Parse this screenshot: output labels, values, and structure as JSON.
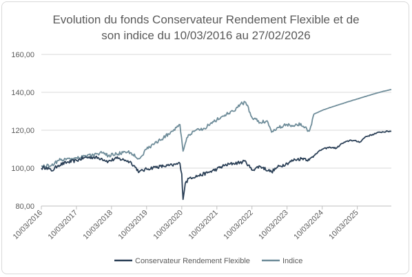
{
  "chart_data": {
    "type": "line",
    "title_lines": [
      "Evolution du fonds Conservateur Rendement Flexible et de",
      "son indice du 10/03/2016 au 27/02/2026"
    ],
    "xlabel": "",
    "ylabel": "",
    "ylim": [
      80,
      160
    ],
    "y_ticks": [
      "80,00",
      "100,00",
      "120,00",
      "140,00",
      "160,00"
    ],
    "y_tick_values": [
      80,
      100,
      120,
      140,
      160
    ],
    "x_ticks": [
      "10/03/2016",
      "10/03/2017",
      "10/03/2018",
      "10/03/2019",
      "10/03/2020",
      "10/03/2021",
      "10/03/2022",
      "10/03/2023",
      "10/03/2024",
      "10/03/2025"
    ],
    "xlim": [
      "2016-03-10",
      "2026-02-27"
    ],
    "grid": "horizontal",
    "legend_position": "bottom",
    "series": [
      {
        "name": "Conservateur Rendement Flexible",
        "color": "#2a3f56",
        "points": [
          [
            "2016-03-10",
            100.0
          ],
          [
            "2016-05-01",
            100.5
          ],
          [
            "2016-06-24",
            98.5
          ],
          [
            "2016-09-01",
            101.5
          ],
          [
            "2016-12-01",
            103.0
          ],
          [
            "2017-03-10",
            104.0
          ],
          [
            "2017-06-01",
            105.5
          ],
          [
            "2017-09-01",
            105.8
          ],
          [
            "2017-12-01",
            105.0
          ],
          [
            "2018-02-05",
            103.5
          ],
          [
            "2018-05-01",
            105.2
          ],
          [
            "2018-08-01",
            104.2
          ],
          [
            "2018-10-01",
            103.0
          ],
          [
            "2018-12-24",
            98.0
          ],
          [
            "2019-03-10",
            99.5
          ],
          [
            "2019-06-01",
            100.5
          ],
          [
            "2019-09-01",
            101.0
          ],
          [
            "2019-12-01",
            101.5
          ],
          [
            "2020-02-20",
            102.5
          ],
          [
            "2020-03-10",
            97.0
          ],
          [
            "2020-03-23",
            83.5
          ],
          [
            "2020-04-15",
            92.0
          ],
          [
            "2020-06-01",
            95.0
          ],
          [
            "2020-09-01",
            96.0
          ],
          [
            "2020-12-01",
            97.5
          ],
          [
            "2021-03-10",
            99.5
          ],
          [
            "2021-06-01",
            101.5
          ],
          [
            "2021-09-01",
            102.5
          ],
          [
            "2021-12-01",
            103.2
          ],
          [
            "2022-01-05",
            103.5
          ],
          [
            "2022-03-08",
            99.0
          ],
          [
            "2022-06-01",
            101.0
          ],
          [
            "2022-09-30",
            98.0
          ],
          [
            "2022-12-01",
            100.5
          ],
          [
            "2023-03-10",
            102.5
          ],
          [
            "2023-06-01",
            104.5
          ],
          [
            "2023-09-01",
            105.2
          ],
          [
            "2023-10-27",
            104.2
          ],
          [
            "2023-12-31",
            107.5
          ],
          [
            "2024-03-10",
            110.0
          ],
          [
            "2024-06-01",
            111.0
          ],
          [
            "2024-08-05",
            110.5
          ],
          [
            "2024-10-01",
            113.0
          ],
          [
            "2025-01-01",
            114.8
          ],
          [
            "2025-04-08",
            113.8
          ],
          [
            "2025-06-01",
            116.5
          ],
          [
            "2025-09-01",
            118.0
          ],
          [
            "2025-11-01",
            119.0
          ],
          [
            "2026-02-27",
            119.5
          ]
        ]
      },
      {
        "name": "Indice",
        "color": "#6e8c99",
        "points": [
          [
            "2016-03-10",
            101.0
          ],
          [
            "2016-06-24",
            101.5
          ],
          [
            "2016-09-01",
            104.0
          ],
          [
            "2016-12-01",
            105.0
          ],
          [
            "2017-03-10",
            105.5
          ],
          [
            "2017-06-01",
            106.5
          ],
          [
            "2017-09-01",
            107.0
          ],
          [
            "2017-12-01",
            108.0
          ],
          [
            "2018-02-05",
            106.5
          ],
          [
            "2018-05-01",
            107.5
          ],
          [
            "2018-08-01",
            108.5
          ],
          [
            "2018-10-01",
            108.0
          ],
          [
            "2018-12-24",
            105.0
          ],
          [
            "2019-03-10",
            110.0
          ],
          [
            "2019-06-01",
            113.0
          ],
          [
            "2019-09-01",
            116.0
          ],
          [
            "2019-12-01",
            119.5
          ],
          [
            "2020-02-20",
            123.0
          ],
          [
            "2020-03-23",
            109.0
          ],
          [
            "2020-05-01",
            116.0
          ],
          [
            "2020-08-01",
            120.0
          ],
          [
            "2020-11-01",
            121.0
          ],
          [
            "2021-01-01",
            123.5
          ],
          [
            "2021-03-10",
            125.5
          ],
          [
            "2021-06-01",
            128.0
          ],
          [
            "2021-09-01",
            130.0
          ],
          [
            "2021-11-15",
            134.0
          ],
          [
            "2022-01-05",
            134.5
          ],
          [
            "2022-03-08",
            127.0
          ],
          [
            "2022-06-01",
            124.0
          ],
          [
            "2022-08-15",
            125.0
          ],
          [
            "2022-09-30",
            119.0
          ],
          [
            "2022-12-01",
            121.5
          ],
          [
            "2023-03-10",
            123.0
          ],
          [
            "2023-06-01",
            122.5
          ],
          [
            "2023-08-01",
            123.5
          ],
          [
            "2023-10-27",
            119.5
          ],
          [
            "2023-12-15",
            128.5
          ],
          [
            "2024-03-10",
            130.5
          ],
          [
            "2024-06-01",
            132.0
          ],
          [
            "2024-09-01",
            133.5
          ],
          [
            "2024-12-01",
            135.0
          ],
          [
            "2025-03-10",
            136.5
          ],
          [
            "2025-06-01",
            137.8
          ],
          [
            "2025-09-01",
            139.2
          ],
          [
            "2025-12-01",
            140.5
          ],
          [
            "2026-02-27",
            141.5
          ]
        ]
      }
    ]
  }
}
